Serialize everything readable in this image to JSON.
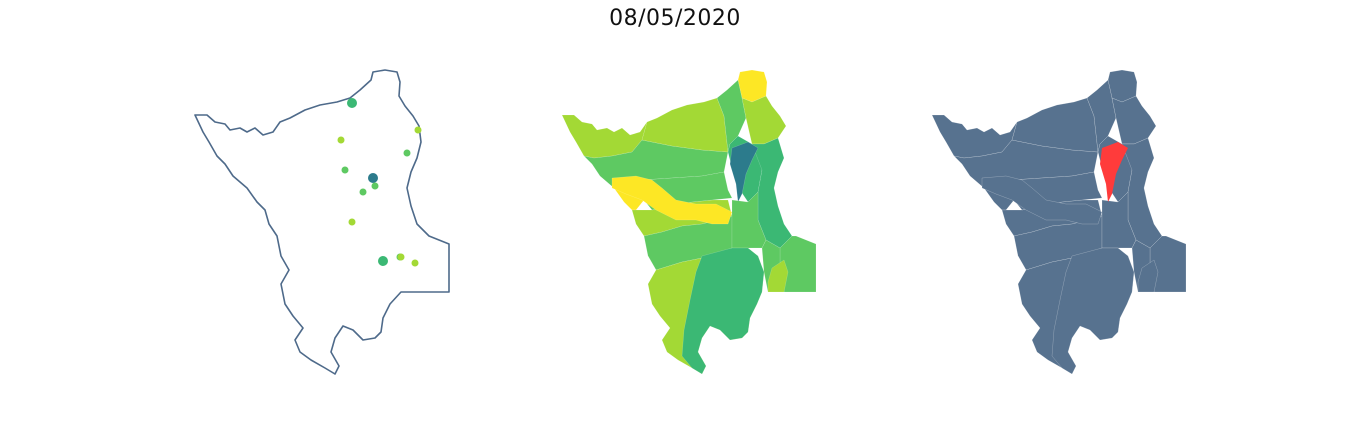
{
  "title": "08/05/2020",
  "colors": {
    "outline": "#4e6a8a",
    "focus_base": "#57728f",
    "focus_highlight": "#ff3b3b",
    "viridis": [
      "#2c7b8c",
      "#3bb874",
      "#5ec962",
      "#a3d935",
      "#fde725"
    ]
  },
  "points_map": {
    "points": [
      {
        "cls": 0,
        "big": true
      },
      {
        "cls": 1,
        "big": true
      },
      {
        "cls": 1,
        "big": true
      },
      {
        "cls": 2,
        "big": false
      },
      {
        "cls": 2,
        "big": false
      },
      {
        "cls": 2,
        "big": false
      },
      {
        "cls": 2,
        "big": false
      },
      {
        "cls": 2,
        "big": false
      },
      {
        "cls": 3,
        "big": false
      },
      {
        "cls": 3,
        "big": false
      },
      {
        "cls": 3,
        "big": false
      },
      {
        "cls": 3,
        "big": false
      },
      {
        "cls": 3,
        "big": false
      }
    ]
  },
  "choropleth_map": {
    "regions": [
      {
        "cls": 3
      },
      {
        "cls": 2
      },
      {
        "cls": 3
      },
      {
        "cls": 4
      },
      {
        "cls": 2
      },
      {
        "cls": 4
      },
      {
        "cls": 3
      },
      {
        "cls": 3
      },
      {
        "cls": 2
      },
      {
        "cls": 2
      },
      {
        "cls": 1
      },
      {
        "cls": 4
      },
      {
        "cls": 1
      },
      {
        "cls": 3
      },
      {
        "cls": 0
      },
      {
        "cls": 2
      },
      {
        "cls": 2
      },
      {
        "cls": 2
      },
      {
        "cls": 3
      },
      {
        "cls": 1
      }
    ]
  },
  "focus_map": {
    "highlighted_region_index": 14
  }
}
